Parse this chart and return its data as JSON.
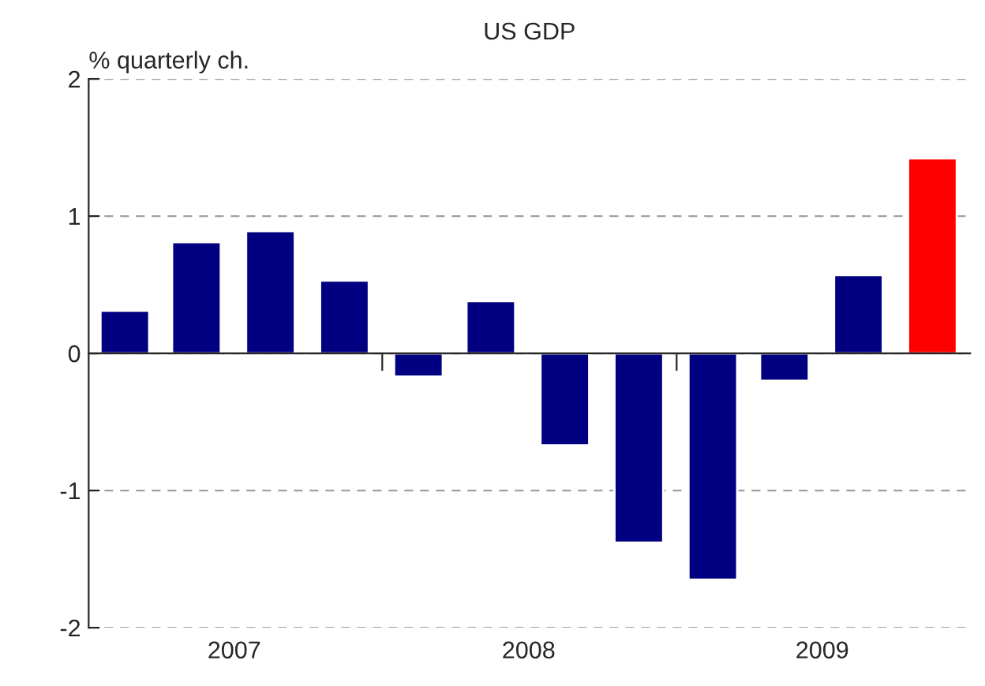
{
  "chart_data": {
    "type": "bar",
    "title": "US GDP",
    "ylabel": "% quarterly ch.",
    "x": [
      "2007-02-15",
      "2007-05-15",
      "2007-08-15",
      "2007-11-15",
      "2008-02-15",
      "2008-05-15",
      "2008-08-15",
      "2008-11-15",
      "2009-02-15",
      "2009-05-15",
      "2009-08-15",
      "2009-11-15"
    ],
    "values": [
      0.31,
      0.81,
      0.89,
      0.53,
      -0.17,
      0.38,
      -0.67,
      -1.38,
      -1.65,
      -0.2,
      0.57,
      1.42
    ],
    "colors": [
      "#000080",
      "#000080",
      "#000080",
      "#000080",
      "#000080",
      "#000080",
      "#000080",
      "#000080",
      "#000080",
      "#000080",
      "#000080",
      "#ff0000"
    ],
    "xlim": [
      "2007-01-01",
      "2010-01-01"
    ],
    "xticks": [
      {
        "value": "2007-07-01",
        "label": "2007"
      },
      {
        "value": "2008-01-01",
        "label": null
      },
      {
        "value": "2008-07-01",
        "label": "2008"
      },
      {
        "value": "2009-01-01",
        "label": null
      },
      {
        "value": "2009-07-01",
        "label": "2009"
      }
    ],
    "ylim": [
      -2,
      2
    ],
    "yticks": [
      -2,
      -1,
      0,
      1,
      2
    ],
    "grid": "y"
  }
}
